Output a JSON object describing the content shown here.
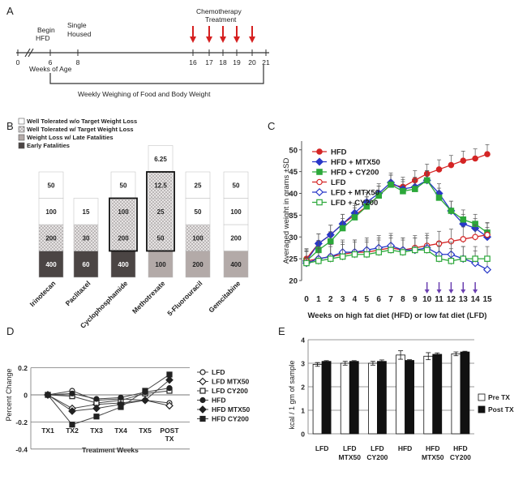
{
  "panelA": {
    "letter": "A",
    "labels": {
      "begin": [
        "Begin",
        "HFD"
      ],
      "single": [
        "Single",
        "Housed"
      ],
      "chemo": [
        "Chemotherapy",
        "Treatment"
      ],
      "weeks": "Weeks of Age",
      "weighing": "Weekly Weighing of Food and Body Weight"
    },
    "ticks": [
      "0",
      "6",
      "8",
      "16",
      "17",
      "18",
      "19",
      "20",
      "21"
    ],
    "arrow_color": "#d62020"
  },
  "panelB": {
    "letter": "B",
    "legend": [
      "Well Tolerated w/o Target Weight Loss",
      "Well Tolerated w/ Target Weight Loss",
      "Weight Loss w/ Late Fatalities",
      "Early Fatalities"
    ],
    "drugs": [
      {
        "name": "Irinotecan",
        "segments": [
          {
            "cat": 3,
            "label": "400"
          },
          {
            "cat": 1,
            "label": "200"
          },
          {
            "cat": 0,
            "label": "100"
          },
          {
            "cat": 0,
            "label": "50"
          }
        ],
        "boxed": []
      },
      {
        "name": "Paclitaxel",
        "segments": [
          {
            "cat": 3,
            "label": "60"
          },
          {
            "cat": 1,
            "label": "30"
          },
          {
            "cat": 0,
            "label": "15"
          }
        ],
        "boxed": []
      },
      {
        "name": "Cyclophosphamide",
        "segments": [
          {
            "cat": 3,
            "label": "400"
          },
          {
            "cat": 1,
            "label": "200"
          },
          {
            "cat": 1,
            "label": "100"
          },
          {
            "cat": 0,
            "label": "50"
          }
        ],
        "boxed": [
          1,
          2
        ]
      },
      {
        "name": "Methotrexate",
        "segments": [
          {
            "cat": 2,
            "label": "100"
          },
          {
            "cat": 1,
            "label": "50"
          },
          {
            "cat": 1,
            "label": "25"
          },
          {
            "cat": 1,
            "label": "12.5"
          },
          {
            "cat": 0,
            "label": "6.25"
          }
        ],
        "boxed": [
          1,
          3
        ]
      },
      {
        "name": "5-Fluorouracil",
        "segments": [
          {
            "cat": 2,
            "label": "200"
          },
          {
            "cat": 1,
            "label": "100"
          },
          {
            "cat": 0,
            "label": "50"
          },
          {
            "cat": 0,
            "label": "25"
          }
        ],
        "boxed": []
      },
      {
        "name": "Gemcitabine",
        "segments": [
          {
            "cat": 2,
            "label": "400"
          },
          {
            "cat": 0,
            "label": "200"
          },
          {
            "cat": 0,
            "label": "100"
          },
          {
            "cat": 0,
            "label": "50"
          }
        ],
        "boxed": []
      }
    ]
  },
  "panelC": {
    "letter": "C",
    "chart_data": {
      "type": "line",
      "ylabel": "Averaged weight in grams ±SD",
      "xlabel": "Weeks on high fat diet (HFD) or low fat diet (LFD)",
      "x": [
        0,
        1,
        2,
        3,
        4,
        5,
        6,
        7,
        8,
        9,
        10,
        11,
        12,
        13,
        14,
        15
      ],
      "ylim": [
        20,
        52
      ],
      "yticks": [
        20,
        25,
        30,
        35,
        40,
        45,
        50
      ],
      "treatment_weeks": [
        10,
        11,
        12,
        13,
        14
      ],
      "series": [
        {
          "name": "HFD",
          "color": "#d42424",
          "marker": "circle",
          "filled": true,
          "values": [
            25,
            28.5,
            30.5,
            33,
            35,
            37,
            39.5,
            42,
            41.5,
            43,
            44.5,
            45.5,
            46.5,
            47.5,
            48,
            49
          ]
        },
        {
          "name": "HFD + MTX50",
          "color": "#2838c8",
          "marker": "diamond",
          "filled": true,
          "values": [
            24.5,
            28.5,
            30.5,
            33,
            35.5,
            38,
            40,
            42.5,
            41,
            41.5,
            43,
            40,
            36,
            33,
            32,
            30
          ]
        },
        {
          "name": "HFD + CY200",
          "color": "#2ca83a",
          "marker": "square",
          "filled": true,
          "values": [
            24.5,
            27,
            29,
            32,
            34.5,
            37,
            39.5,
            42,
            40.5,
            41,
            43,
            39,
            36,
            34,
            33,
            31
          ]
        },
        {
          "name": "LFD",
          "color": "#d42424",
          "marker": "circle",
          "filled": false,
          "values": [
            24.5,
            25,
            25.5,
            26,
            26.5,
            26.5,
            27,
            27.5,
            27,
            27.5,
            28,
            28.5,
            29,
            29.5,
            30,
            30.5
          ]
        },
        {
          "name": "LFD + MTX50",
          "color": "#2838c8",
          "marker": "diamond",
          "filled": false,
          "values": [
            24,
            25,
            25.5,
            26.5,
            26.5,
            27,
            27.5,
            28,
            27,
            27,
            27.5,
            26,
            26,
            25,
            24,
            22.5
          ]
        },
        {
          "name": "LFD + CY200",
          "color": "#2ca83a",
          "marker": "square",
          "filled": false,
          "values": [
            24,
            24.5,
            25,
            25.5,
            26,
            26,
            26.5,
            27,
            26.5,
            27,
            27,
            25,
            24.5,
            25,
            25,
            25
          ]
        }
      ]
    }
  },
  "panelD": {
    "letter": "D",
    "chart_data": {
      "type": "line",
      "ylabel": "Percent Change",
      "xlabel": "Treatment Weeks",
      "categories": [
        "TX1",
        "TX2",
        "TX3",
        "TX4",
        "TX5",
        "POST TX"
      ],
      "ylim": [
        -0.4,
        0.2
      ],
      "yticks": [
        "0.2",
        "0",
        "-0.2",
        "-0.4"
      ],
      "series": [
        {
          "name": "LFD",
          "marker": "circle",
          "filled": false,
          "values": [
            0,
            0.03,
            -0.04,
            -0.03,
            -0.04,
            -0.06
          ]
        },
        {
          "name": "LFD MTX50",
          "marker": "diamond",
          "filled": false,
          "values": [
            0,
            -0.1,
            -0.07,
            -0.06,
            -0.04,
            -0.08
          ]
        },
        {
          "name": "LFD CY200",
          "marker": "square",
          "filled": false,
          "values": [
            0,
            -0.01,
            -0.06,
            -0.04,
            0.01,
            0.03
          ]
        },
        {
          "name": "HFD",
          "marker": "circle",
          "filled": true,
          "values": [
            0,
            0.01,
            -0.03,
            -0.02,
            0.02,
            0.05
          ]
        },
        {
          "name": "HFD MTX50",
          "marker": "diamond",
          "filled": true,
          "values": [
            0,
            -0.12,
            -0.1,
            -0.07,
            -0.04,
            0.11
          ]
        },
        {
          "name": "HFD CY200",
          "marker": "square",
          "filled": true,
          "values": [
            0,
            -0.22,
            -0.16,
            -0.09,
            0.03,
            0.15
          ]
        }
      ]
    }
  },
  "panelE": {
    "letter": "E",
    "chart_data": {
      "type": "bar",
      "ylabel": "kcal / 1 gm of sample",
      "categories": [
        [
          "LFD"
        ],
        [
          "LFD",
          "MTX50"
        ],
        [
          "LFD",
          "CY200"
        ],
        [
          "HFD"
        ],
        [
          "HFD",
          "MTX50"
        ],
        [
          "HFD",
          "CY200"
        ]
      ],
      "ylim": [
        0,
        4
      ],
      "yticks": [
        "0",
        "1",
        "2",
        "3",
        "4"
      ],
      "series": [
        {
          "name": "Pre TX",
          "color": "#ffffff",
          "values": [
            2.95,
            3.0,
            3.0,
            3.35,
            3.3,
            3.4
          ],
          "err": [
            0.08,
            0.08,
            0.08,
            0.18,
            0.15,
            0.08
          ]
        },
        {
          "name": "Post TX",
          "color": "#111111",
          "values": [
            3.08,
            3.08,
            3.08,
            3.12,
            3.38,
            3.48
          ],
          "err": [
            0.03,
            0.03,
            0.06,
            0.03,
            0.06,
            0.03
          ]
        }
      ]
    }
  }
}
